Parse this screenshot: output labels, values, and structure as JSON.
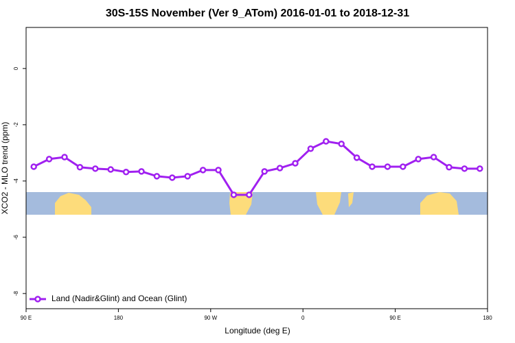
{
  "chart_data": {
    "type": "line",
    "title": "30S-15S November (Ver 9_ATom)   2016-01-01 to 2018-12-31",
    "x_label": "Longitude (deg E)",
    "y_label": "XCO2 - MLO trend (ppm)",
    "x": [
      97.5,
      112.5,
      127.5,
      142.5,
      157.5,
      172.5,
      187.5,
      202.5,
      217.5,
      232.5,
      247.5,
      262.5,
      277.5,
      292.5,
      307.5,
      322.5,
      337.5,
      352.5,
      367.5,
      382.5,
      397.5,
      412.5,
      427.5,
      442.5,
      457.5,
      472.5,
      487.5,
      502.5,
      517.5,
      532.5
    ],
    "series": [
      {
        "name": "Land (Nadir&Glint) and Ocean (Glint)",
        "color": "#a020f0",
        "values": [
          -3.49,
          -3.22,
          -3.15,
          -3.51,
          -3.56,
          -3.59,
          -3.68,
          -3.66,
          -3.83,
          -3.88,
          -3.83,
          -3.61,
          -3.61,
          -4.49,
          -4.49,
          -3.66,
          -3.54,
          -3.37,
          -2.85,
          -2.59,
          -2.68,
          -3.17,
          -3.49,
          -3.49,
          -3.49,
          -3.22,
          -3.15,
          -3.51,
          -3.56,
          -3.56
        ]
      }
    ],
    "xlim": [
      90,
      540
    ],
    "xticks": [
      {
        "value": 90,
        "label": "90 E"
      },
      180,
      {
        "value": 270,
        "label": "90 W"
      },
      {
        "value": 360,
        "label": "0"
      },
      {
        "value": 450,
        "label": "90 E"
      },
      {
        "value": 540,
        "label": "180"
      }
    ],
    "ylim": [
      -8.54,
      1.46
    ],
    "yticks": [
      0,
      -2,
      -4,
      -6,
      -8
    ],
    "legend": "bottom-left"
  }
}
